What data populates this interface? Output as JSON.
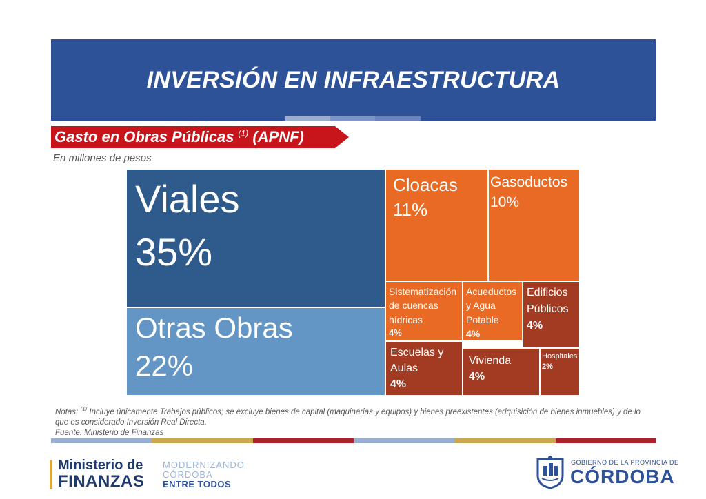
{
  "header": {
    "title": "INVERSIÓN EN INFRAESTRUCTURA",
    "tab_colors": [
      "#9aaed3",
      "#7e96c6",
      "#6a84bb"
    ]
  },
  "subtitle": {
    "text_before": "Gasto en Obras Públicas ",
    "superscript": "(1)",
    "text_after": " (APNF)",
    "color": "#c8151b"
  },
  "units": "En millones de pesos",
  "chart_data": {
    "type": "treemap",
    "title": "",
    "unit": "%",
    "items": [
      {
        "label": "Viales",
        "value": 35,
        "pct_text": "35%",
        "color": "#2f5b8c"
      },
      {
        "label": "Otras Obras",
        "value": 22,
        "pct_text": "22%",
        "color": "#6396c4"
      },
      {
        "label": "Cloacas",
        "value": 11,
        "pct_text": "11%",
        "color": "#e86a25"
      },
      {
        "label": "Gasoductos",
        "value": 10,
        "pct_text": "10%",
        "color": "#e86a25"
      },
      {
        "label": "Sistematización de cuencas hídricas",
        "value": 4,
        "pct_text": "4%",
        "color": "#e86a25"
      },
      {
        "label": "Acueductos y Agua Potable",
        "value": 4,
        "pct_text": "4%",
        "color": "#e86a25"
      },
      {
        "label": "Edificios Públicos",
        "value": 4,
        "pct_text": "4%",
        "color": "#a23b22"
      },
      {
        "label": "Escuelas y Aulas",
        "value": 4,
        "pct_text": "4%",
        "color": "#a23b22"
      },
      {
        "label": "Vivienda",
        "value": 4,
        "pct_text": "4%",
        "color": "#a23b22"
      },
      {
        "label": "Hospitales",
        "value": 2,
        "pct_text": "2%",
        "color": "#a23b22"
      }
    ]
  },
  "notes": {
    "prefix": "Notas: ",
    "superscript": "(1)",
    "line1": " Incluye únicamente Trabajos públicos; se excluye bienes de capital (maquinarias y equipos) y bienes preexistentes (adquisición de bienes inmuebles) y de lo que es considerado Inversión Real Directa.",
    "source": "Fuente: Ministerio de Finanzas"
  },
  "stripe_colors": [
    "#9aaed3",
    "#c9a84f",
    "#a8232e",
    "#9aaed3",
    "#c9a84f",
    "#a8232e"
  ],
  "footer": {
    "ministry_line1": "Ministerio de",
    "ministry_line2": "FINANZAS",
    "slogan_line1": "MODERNIZANDO",
    "slogan_line2": "CÓRDOBA",
    "slogan_line3": "ENTRE TODOS",
    "gov_small": "GOBIERNO DE LA PROVINCIA DE",
    "gov_big": "CÓRDOBA"
  }
}
